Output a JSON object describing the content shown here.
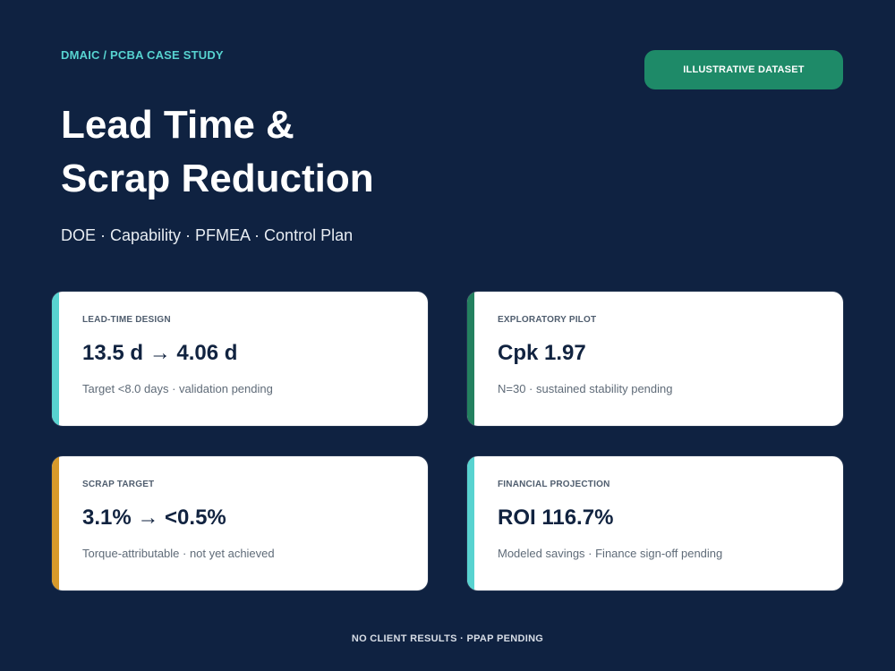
{
  "header": {
    "eyebrow": "DMAIC / PCBA CASE STUDY",
    "badge": "ILLUSTRATIVE DATASET",
    "title_line_1": "Lead Time &",
    "title_line_2": "Scrap Reduction",
    "subtitle": "DOE · Capability · PFMEA · Control Plan"
  },
  "cards": [
    {
      "label": "LEAD-TIME DESIGN",
      "value": "13.5 d → 4.06 d",
      "note": "Target <8.0 days · validation pending",
      "accent_color": "#58d3d0"
    },
    {
      "label": "EXPLORATORY PILOT",
      "value": "Cpk 1.97",
      "note": "N=30 · sustained stability pending",
      "accent_color": "#23815f"
    },
    {
      "label": "SCRAP TARGET",
      "value": "3.1% → <0.5%",
      "note": "Torque-attributable · not yet achieved",
      "accent_color": "#d89a2b"
    },
    {
      "label": "FINANCIAL PROJECTION",
      "value": "ROI 116.7%",
      "note": "Modeled savings · Finance sign-off pending",
      "accent_color": "#58d3d0"
    }
  ],
  "footer": {
    "text": "NO CLIENT RESULTS · PPAP PENDING"
  },
  "colors": {
    "background": "#0f2241",
    "eyebrow": "#57d3d0",
    "badge": "#1e8a68"
  }
}
